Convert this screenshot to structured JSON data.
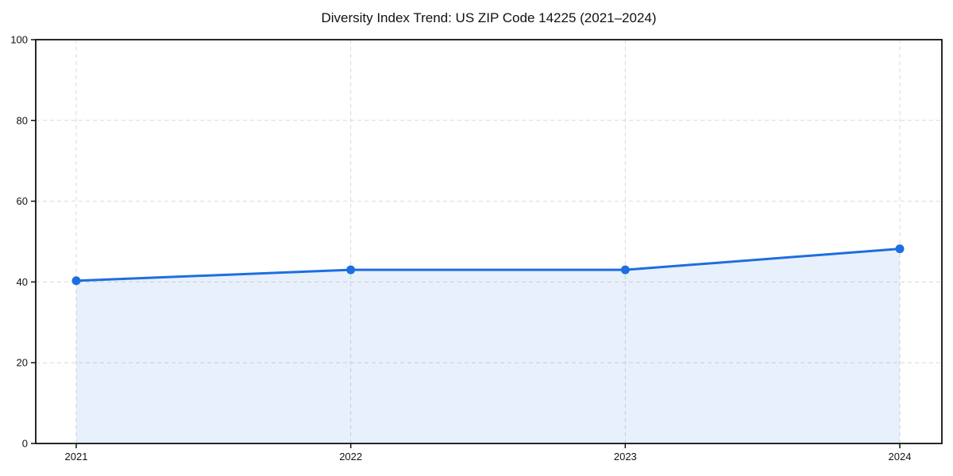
{
  "chart_data": {
    "type": "line",
    "title": "Diversity Index Trend: US ZIP Code 14225 (2021–2024)",
    "x": [
      "2021",
      "2022",
      "2023",
      "2024"
    ],
    "series": [
      {
        "name": "Diversity Index",
        "values": [
          40.3,
          43.0,
          43.0,
          48.2
        ]
      }
    ],
    "area_fill": true,
    "marker": "circle",
    "xlabel": "",
    "ylabel": "",
    "ylim": [
      0,
      100
    ],
    "yticks": [
      0,
      20,
      40,
      60,
      80,
      100
    ],
    "grid": {
      "style": "dashed",
      "horizontal": true,
      "vertical": true
    },
    "legend": "none",
    "colors": {
      "line": "#1d6ee0",
      "area": "rgba(29,110,224,0.10)",
      "grid": "#d9d9d9",
      "axis": "#111111",
      "text": "#111111"
    }
  }
}
